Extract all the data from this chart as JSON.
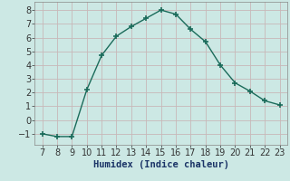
{
  "x": [
    7,
    8,
    9,
    10,
    11,
    12,
    13,
    14,
    15,
    16,
    17,
    18,
    19,
    20,
    21,
    22,
    23
  ],
  "y": [
    -1.0,
    -1.2,
    -1.2,
    2.2,
    4.7,
    6.1,
    6.8,
    7.4,
    8.0,
    7.7,
    6.6,
    5.7,
    4.0,
    2.7,
    2.1,
    1.4,
    1.1
  ],
  "line_color": "#1a6b5a",
  "marker": "+",
  "marker_size": 5,
  "marker_linewidth": 1.2,
  "background_color": "#cce8e4",
  "grid_color_major": "#c8b8b8",
  "grid_color_minor": "#ddd0d0",
  "xlabel": "Humidex (Indice chaleur)",
  "xlabel_fontsize": 7.5,
  "tick_fontsize": 7,
  "xlim": [
    6.5,
    23.5
  ],
  "ylim": [
    -1.8,
    8.6
  ],
  "yticks": [
    -1,
    0,
    1,
    2,
    3,
    4,
    5,
    6,
    7,
    8
  ],
  "xticks": [
    7,
    8,
    9,
    10,
    11,
    12,
    13,
    14,
    15,
    16,
    17,
    18,
    19,
    20,
    21,
    22,
    23
  ],
  "linewidth": 1.0,
  "spine_color": "#888888"
}
